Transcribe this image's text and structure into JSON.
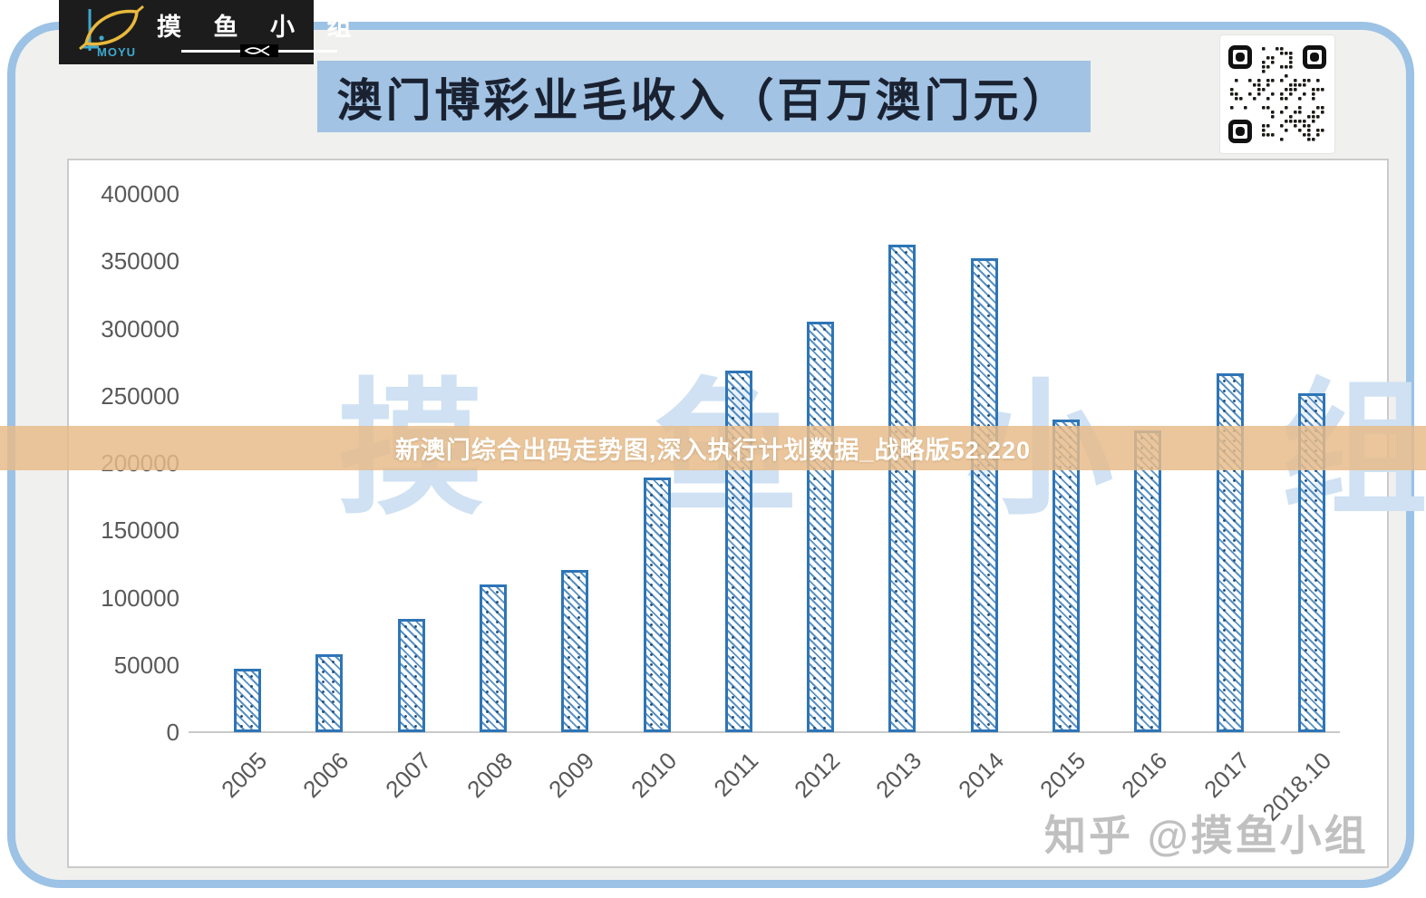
{
  "logo": {
    "brand": "MOYU",
    "chars": "摸 鱼 小 组"
  },
  "header": {
    "title": "澳门博彩业毛收入（百万澳门元）"
  },
  "watermarks": {
    "band_text": "新澳门综合出码走势图,深入执行计划数据_战略版52.220",
    "big_text": "摸 鱼 小 组",
    "corner_text": "知乎 @摸鱼小组"
  },
  "colors": {
    "frame_blue": "#9cc2e5",
    "banner_blue": "#a2c3e3",
    "bar_blue": "#2e75b6",
    "band_tan": "#e7bb89",
    "label_gray": "#595959",
    "watermark_blue": "#cfe1f3"
  },
  "chart_data": {
    "type": "bar",
    "title": "澳门博彩业毛收入（百万澳门元）",
    "categories": [
      "2005",
      "2006",
      "2007",
      "2008",
      "2009",
      "2010",
      "2011",
      "2012",
      "2013",
      "2014",
      "2015",
      "2016",
      "2017",
      "2018.10"
    ],
    "values": [
      47000,
      58000,
      84000,
      110000,
      120500,
      189000,
      269000,
      305000,
      362000,
      352000,
      232000,
      224000,
      267000,
      252000
    ],
    "xlabel": "",
    "ylabel": "",
    "ylim": [
      0,
      400000
    ],
    "ytick_interval": 50000,
    "grid": false,
    "legend": "none",
    "bar_style": "diagonal-hatch"
  }
}
